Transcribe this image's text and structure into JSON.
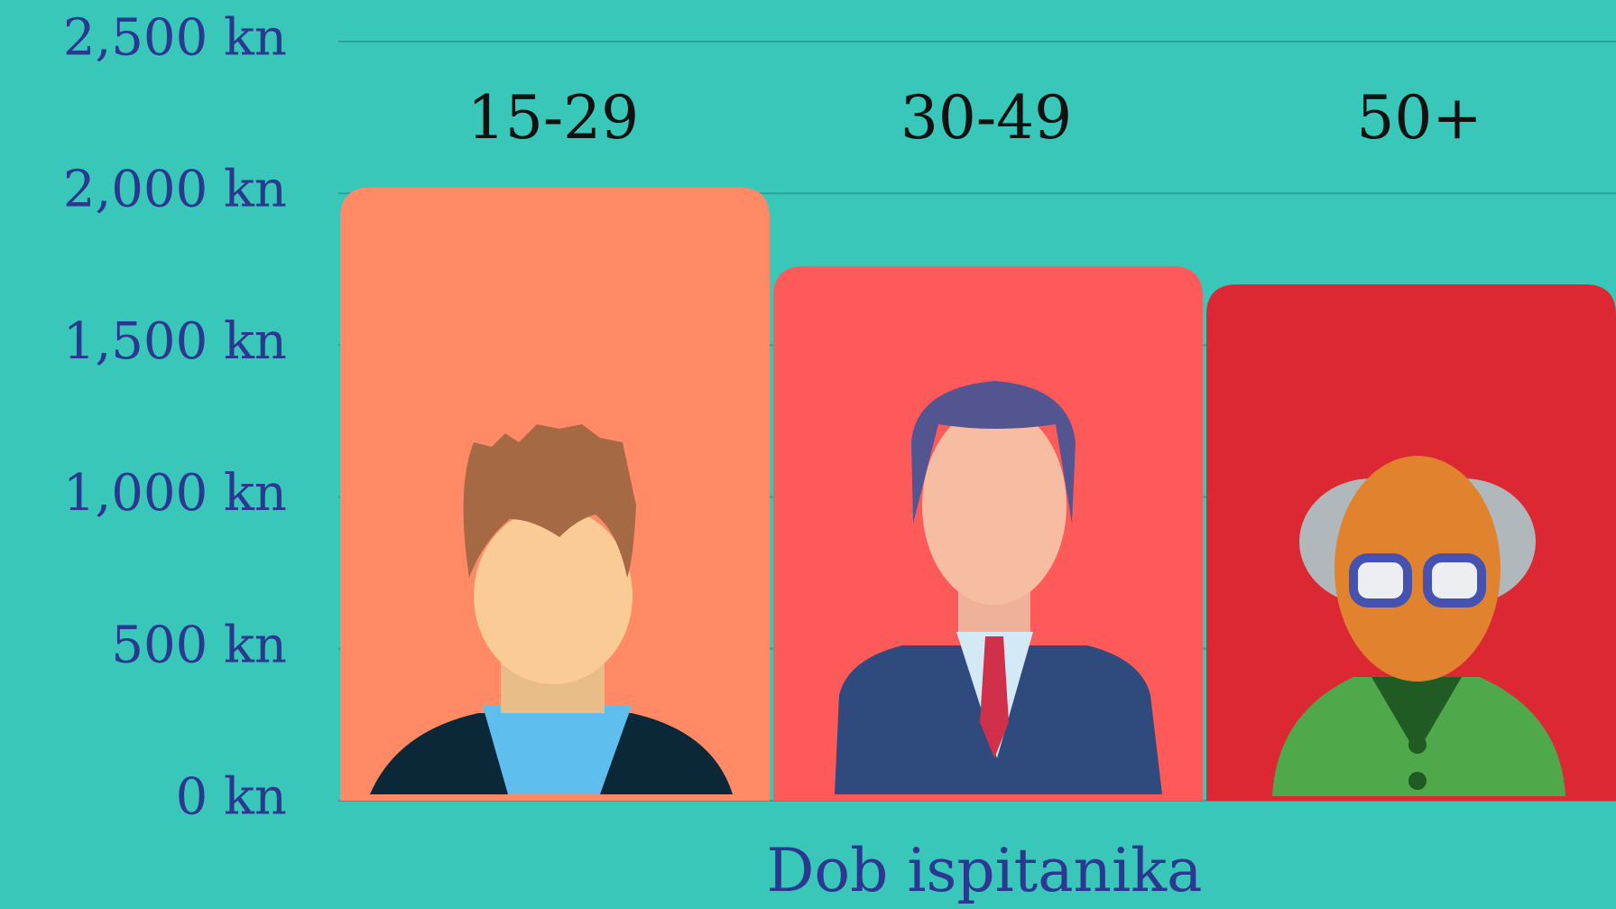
{
  "chart_data": {
    "type": "bar",
    "x_label": "Dob ispitanika",
    "categories": [
      "15-29",
      "30-49",
      "50+"
    ],
    "values": [
      2020,
      1760,
      1700
    ],
    "colors": [
      "#ff8a65",
      "#ff5a5a",
      "#dc2832"
    ],
    "ylim": [
      0,
      2500
    ],
    "yticks": [
      {
        "value": 0,
        "label": "0 kn"
      },
      {
        "value": 500,
        "label": "500 kn"
      },
      {
        "value": 1000,
        "label": "1,000 kn"
      },
      {
        "value": 1500,
        "label": "1,500 kn"
      },
      {
        "value": 2000,
        "label": "2,000 kn"
      },
      {
        "value": 2500,
        "label": "2,500 kn"
      }
    ],
    "grid": true
  }
}
